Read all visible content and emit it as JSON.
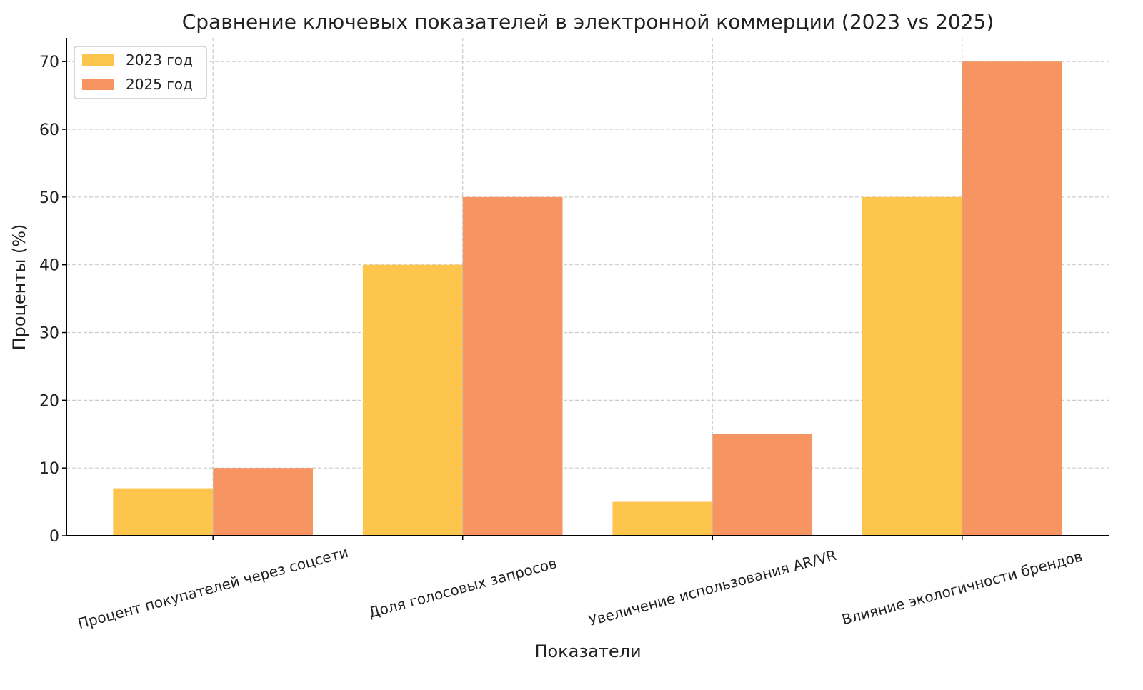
{
  "chart_data": {
    "type": "bar",
    "title": "Сравнение ключевых показателей в электронной коммерции (2023 vs 2025)",
    "xlabel": "Показатели",
    "ylabel": "Проценты (%)",
    "categories": [
      "Процент покупателей через соцсети",
      "Доля голосовых запросов",
      "Увеличение использования AR/VR",
      "Влияние экологичности брендов"
    ],
    "series": [
      {
        "name": "2023 год",
        "values": [
          7,
          40,
          5,
          50
        ],
        "color": "#FDC54C"
      },
      {
        "name": "2025 год",
        "values": [
          10,
          50,
          15,
          70
        ],
        "color": "#F69462"
      }
    ],
    "ylim": [
      0,
      73.5
    ],
    "yticks": [
      0,
      10,
      20,
      30,
      40,
      50,
      60,
      70
    ],
    "grid": true,
    "legend": "top-left",
    "xtick_rotation": 15
  }
}
